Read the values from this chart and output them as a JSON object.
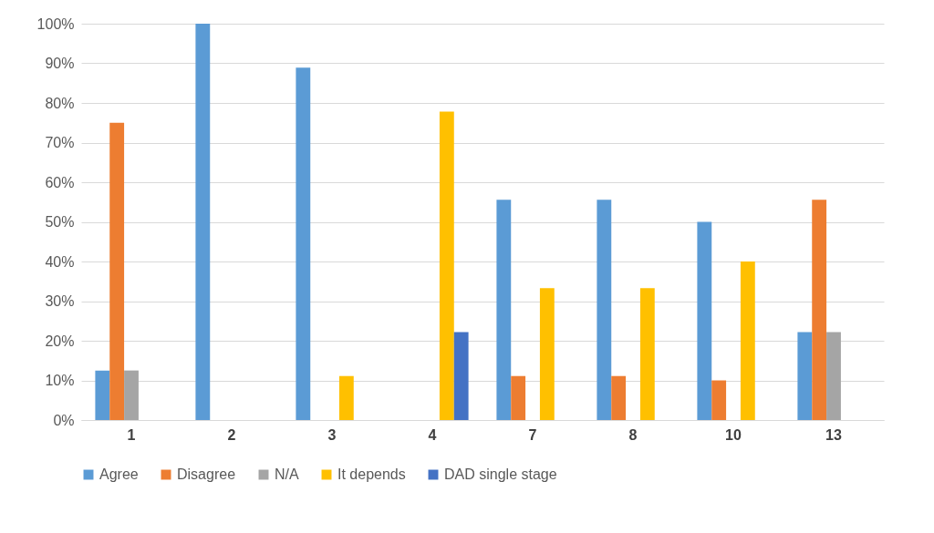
{
  "chart_data": {
    "type": "bar",
    "categories": [
      "1",
      "2",
      "3",
      "4",
      "7",
      "8",
      "10",
      "13"
    ],
    "series": [
      {
        "name": "Agree",
        "color": "#5b9bd5",
        "values": [
          12.5,
          100,
          88.9,
          null,
          55.6,
          55.6,
          50,
          22.2
        ]
      },
      {
        "name": "Disagree",
        "color": "#ed7d31",
        "values": [
          75,
          null,
          null,
          null,
          11.1,
          11.1,
          10,
          55.6
        ]
      },
      {
        "name": "N/A",
        "color": "#a5a5a5",
        "values": [
          12.5,
          null,
          null,
          null,
          null,
          null,
          null,
          22.2
        ]
      },
      {
        "name": "It depends",
        "color": "#ffc000",
        "values": [
          null,
          null,
          11.1,
          77.8,
          33.3,
          33.3,
          40,
          null
        ]
      },
      {
        "name": "DAD single stage",
        "color": "#4472c4",
        "values": [
          null,
          null,
          null,
          22.2,
          null,
          null,
          null,
          null
        ]
      }
    ],
    "ylim": [
      0,
      100
    ],
    "yticks": [
      {
        "value": 0,
        "label": "0%"
      },
      {
        "value": 10,
        "label": "10%"
      },
      {
        "value": 20,
        "label": "20%"
      },
      {
        "value": 30,
        "label": "30%"
      },
      {
        "value": 40,
        "label": "40%"
      },
      {
        "value": 50,
        "label": "50%"
      },
      {
        "value": 60,
        "label": "60%"
      },
      {
        "value": 70,
        "label": "70%"
      },
      {
        "value": 80,
        "label": "80%"
      },
      {
        "value": 90,
        "label": "90%"
      },
      {
        "value": 100,
        "label": "100%"
      }
    ],
    "grid": "y",
    "legend": "bottom"
  }
}
